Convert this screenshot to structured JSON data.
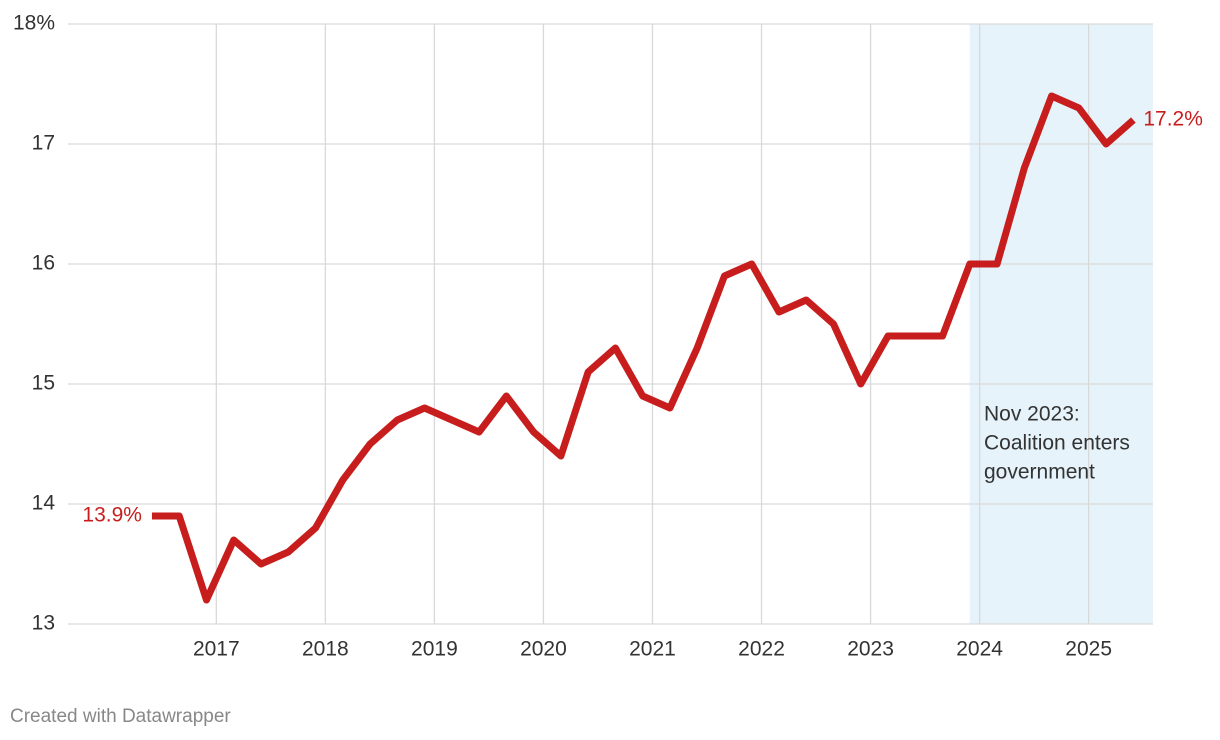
{
  "chart_data": {
    "type": "line",
    "x": [
      2016.41,
      2016.66,
      2016.91,
      2017.16,
      2017.41,
      2017.66,
      2017.91,
      2018.16,
      2018.41,
      2018.66,
      2018.91,
      2019.16,
      2019.41,
      2019.66,
      2019.91,
      2020.16,
      2020.41,
      2020.66,
      2020.91,
      2021.16,
      2021.41,
      2021.66,
      2021.91,
      2022.16,
      2022.41,
      2022.66,
      2022.91,
      2023.16,
      2023.41,
      2023.66,
      2023.91,
      2024.16,
      2024.41,
      2024.66,
      2024.91,
      2025.16,
      2025.41
    ],
    "series": [
      {
        "color": "#c71e1d",
        "values": [
          13.9,
          13.9,
          13.2,
          13.7,
          13.5,
          13.6,
          13.8,
          14.2,
          14.5,
          14.7,
          14.8,
          14.7,
          14.6,
          14.9,
          14.6,
          14.4,
          15.1,
          15.3,
          14.9,
          14.8,
          15.3,
          15.9,
          16.0,
          15.6,
          15.7,
          15.5,
          15.0,
          15.4,
          15.4,
          15.4,
          16.0,
          16.0,
          16.8,
          17.4,
          17.3,
          17.0,
          17.2
        ],
        "value_labels": [
          "13.9%",
          null,
          null,
          null,
          null,
          null,
          null,
          null,
          null,
          null,
          null,
          null,
          null,
          null,
          null,
          null,
          null,
          null,
          null,
          null,
          null,
          null,
          null,
          null,
          null,
          null,
          null,
          null,
          null,
          null,
          null,
          null,
          null,
          null,
          null,
          null,
          "17.2%"
        ]
      }
    ],
    "xlim": [
      2015.64,
      2025.59
    ],
    "xticks": [
      2017,
      2018,
      2019,
      2020,
      2021,
      2022,
      2023,
      2024,
      2025
    ],
    "ylim": [
      13,
      18
    ],
    "yticks": [
      13,
      14,
      15,
      16,
      17,
      {
        "value": 18,
        "label": "18%"
      }
    ],
    "grid": true,
    "highlight_range": [
      2023.91,
      2025.59
    ],
    "highlight_color": "#e6f3fa",
    "annotation": [
      "Nov 2023:",
      "Coalition enters",
      "government"
    ],
    "footer": "Created with Datawrapper"
  }
}
